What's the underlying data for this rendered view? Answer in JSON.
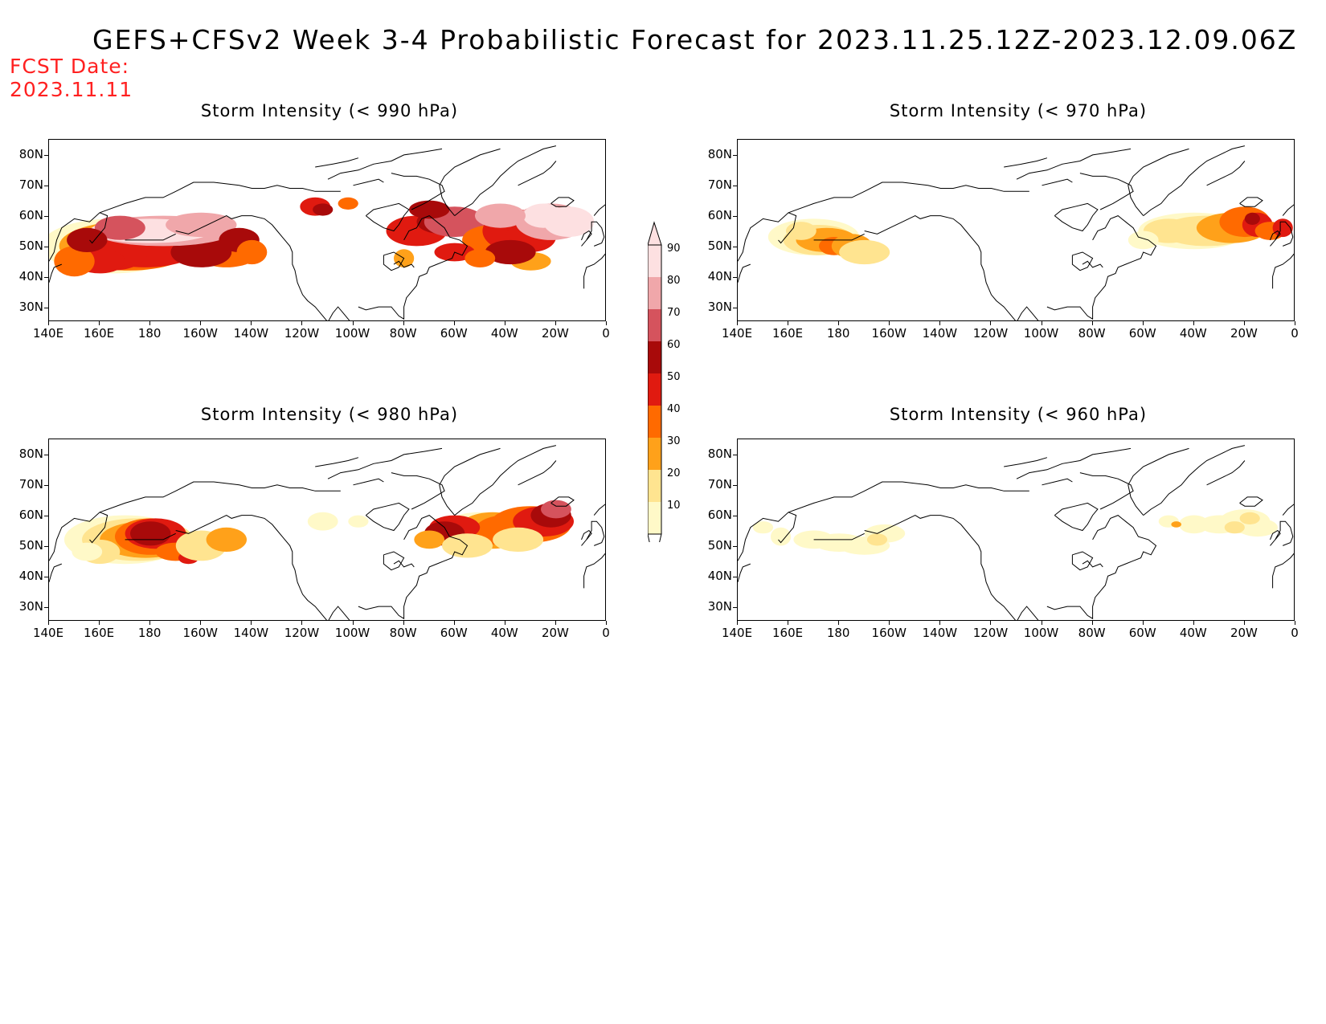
{
  "header": {
    "title": "GEFS+CFSv2 Week 3-4 Probabilistic Forecast for 2023.11.25.12Z-2023.12.09.06Z",
    "fcst_label": "FCST Date:",
    "fcst_date": "2023.11.11"
  },
  "axes": {
    "lat_labels": [
      "80N",
      "70N",
      "60N",
      "50N",
      "40N",
      "30N"
    ],
    "lon_labels": [
      "140E",
      "160E",
      "180",
      "160W",
      "140W",
      "120W",
      "100W",
      "80W",
      "60W",
      "40W",
      "20W",
      "0"
    ]
  },
  "panels": [
    {
      "title": "Storm Intensity (< 990 hPa)"
    },
    {
      "title": "Storm Intensity (< 970 hPa)"
    },
    {
      "title": "Storm Intensity (< 980 hPa)"
    },
    {
      "title": "Storm Intensity (< 960 hPa)"
    }
  ],
  "colorbar": {
    "levels": [
      "10",
      "20",
      "30",
      "40",
      "50",
      "60",
      "70",
      "80",
      "90"
    ],
    "colors": [
      "#fff9c8",
      "#ffe490",
      "#ffa11a",
      "#ff6a00",
      "#e01a10",
      "#a80a0a",
      "#d5535d",
      "#f0a7aa",
      "#fde0e1"
    ]
  }
}
